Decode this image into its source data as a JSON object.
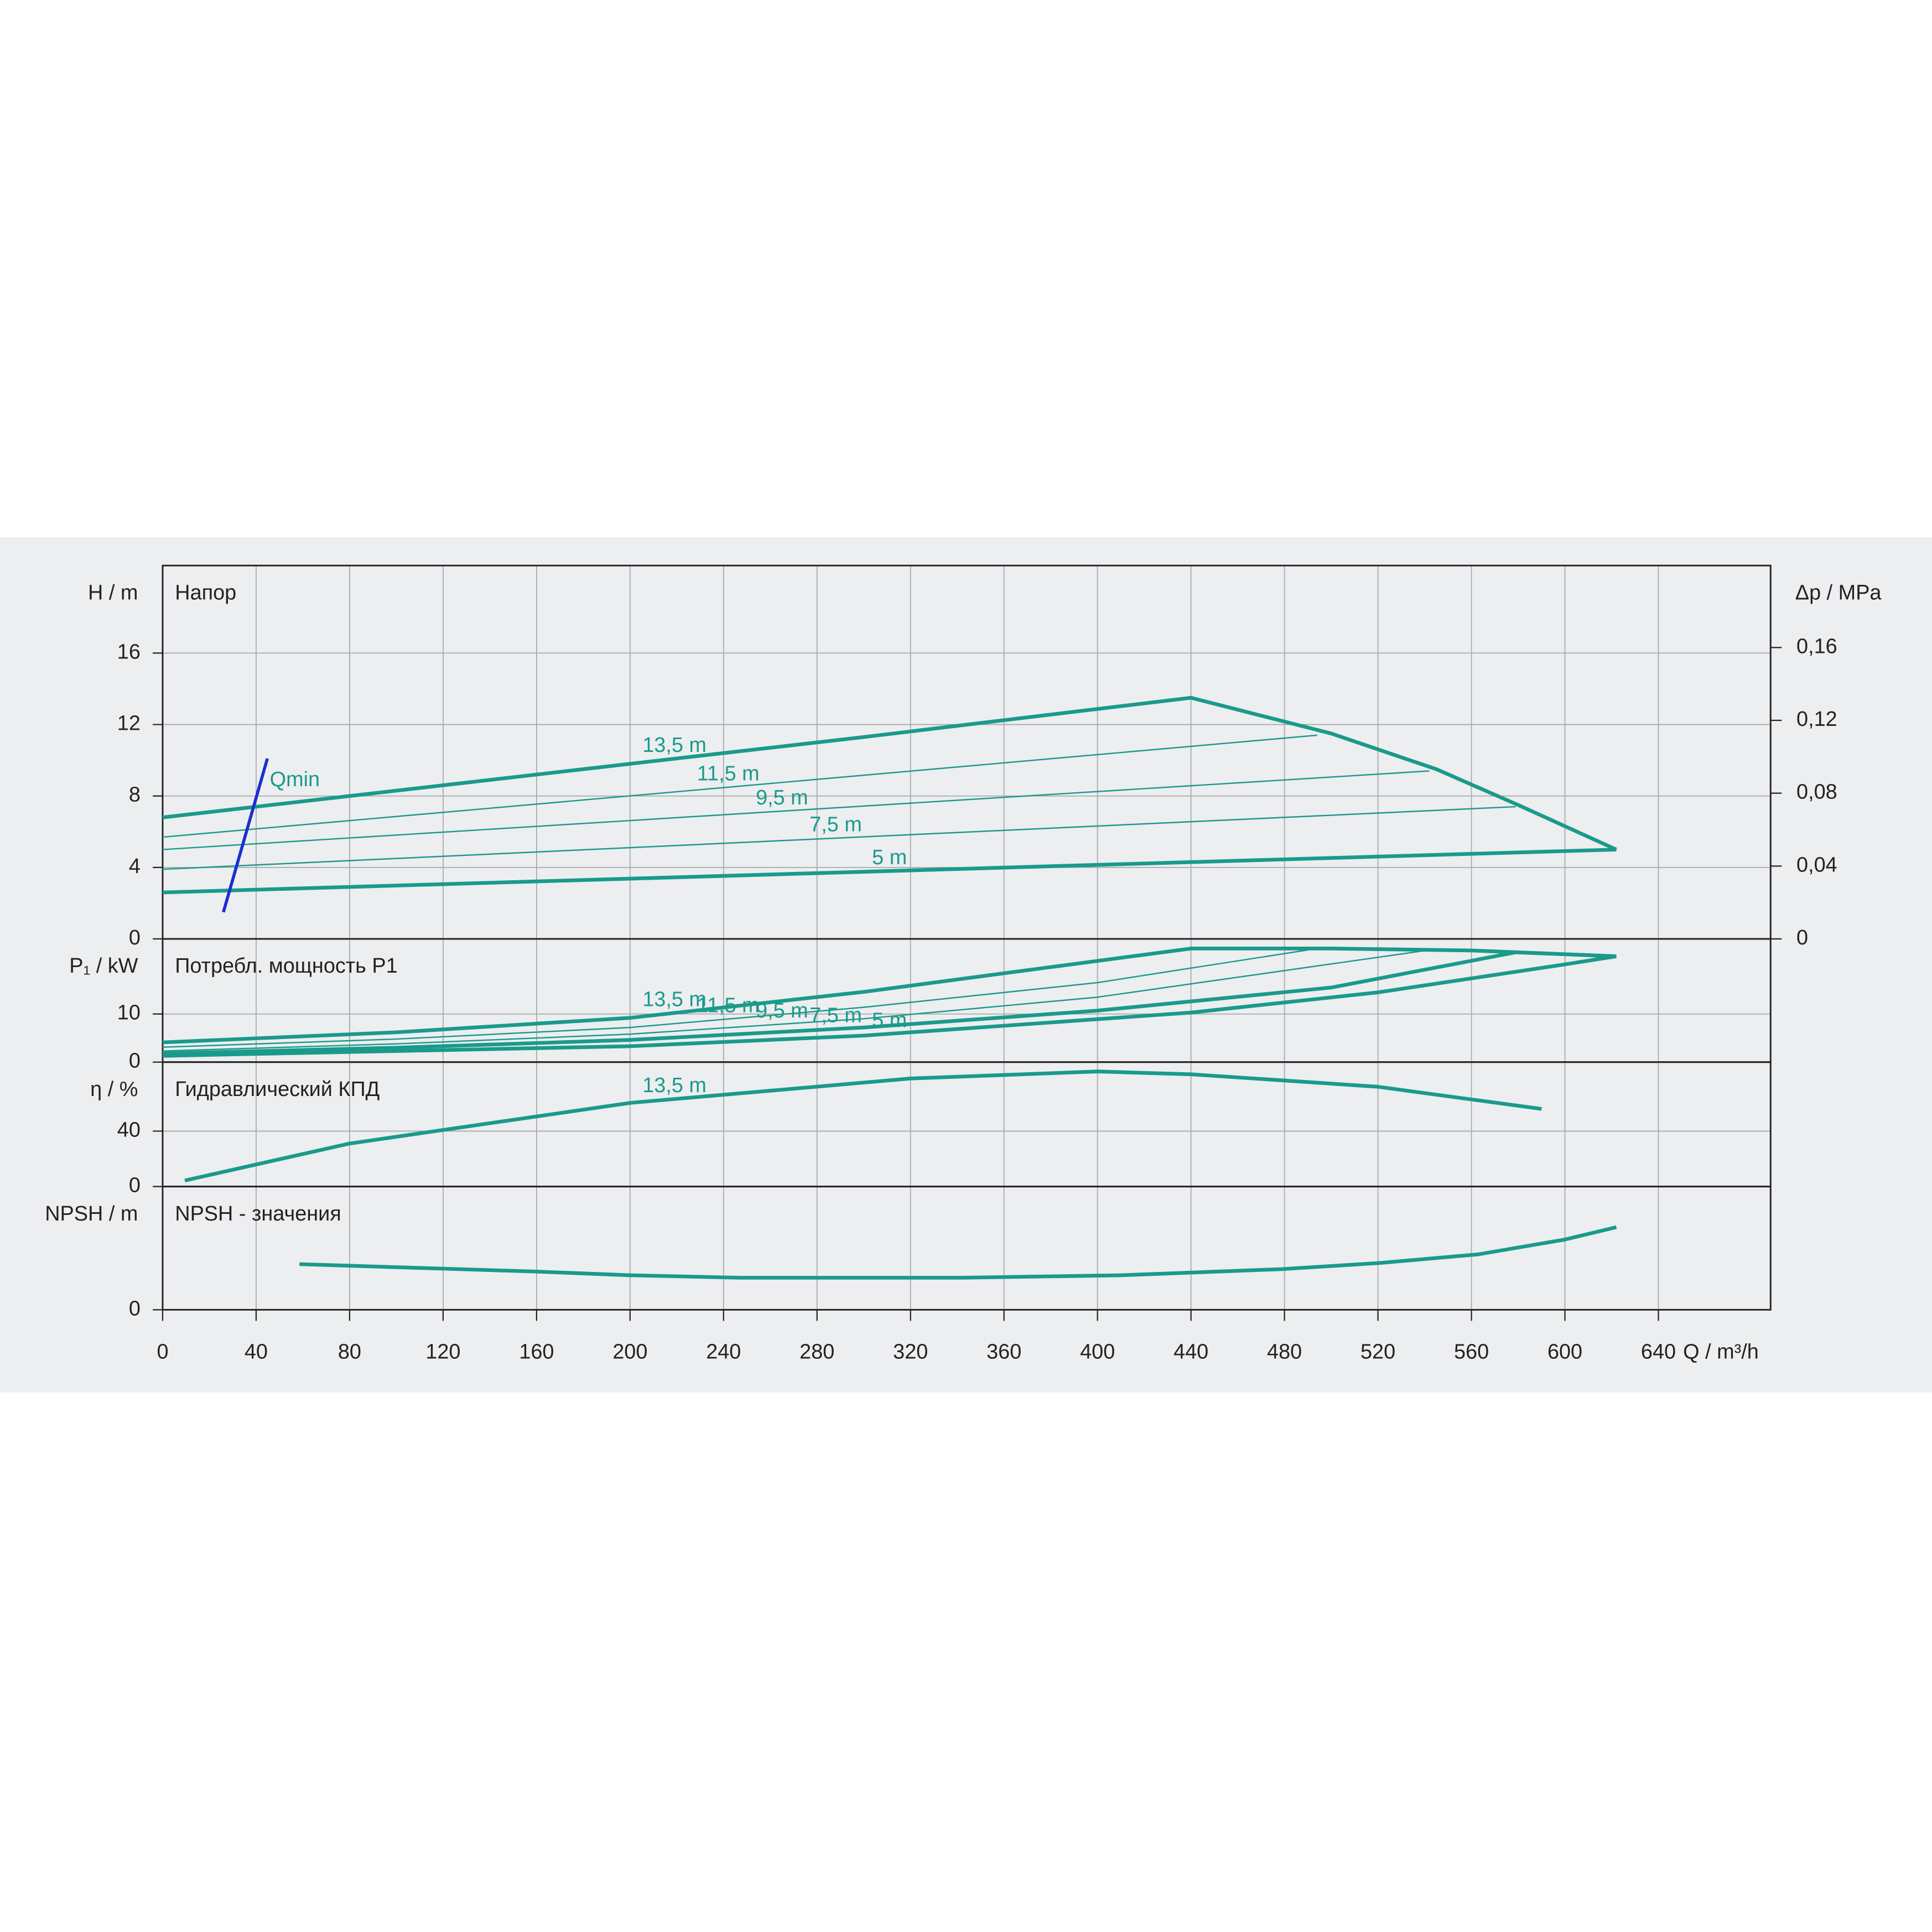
{
  "chart_data": [
    {
      "type": "line",
      "title": "Напор",
      "ylabel": "H / m",
      "ylim": [
        0,
        20.9
      ],
      "yticks": [
        0,
        4,
        8,
        12,
        16
      ],
      "y2label": "Δp / MPa",
      "y2lim": [
        0,
        0.205
      ],
      "y2ticks": [
        0,
        {
          "value": 0.04,
          "label": "0,04"
        },
        {
          "value": 0.08,
          "label": "0,08"
        },
        {
          "value": 0.12,
          "label": "0,12"
        },
        {
          "value": 0.16,
          "label": "0,16"
        }
      ],
      "series": [
        {
          "name": "13,5 m",
          "color": "#1a9a8a",
          "x": [
            0,
            100,
            200,
            300,
            440,
            500,
            545,
            580,
            622
          ],
          "values": [
            6.8,
            8.3,
            9.8,
            11.3,
            13.5,
            11.5,
            9.5,
            7.5,
            5.0
          ]
        },
        {
          "name": "11,5 m",
          "color": "#1a9a8a",
          "x": [
            0,
            494
          ],
          "values": [
            5.7,
            11.4
          ]
        },
        {
          "name": "9,5 m",
          "color": "#1a9a8a",
          "x": [
            0,
            542
          ],
          "values": [
            5.0,
            9.4
          ]
        },
        {
          "name": "7,5 m",
          "color": "#1a9a8a",
          "x": [
            0,
            579
          ],
          "values": [
            3.9,
            7.4
          ]
        },
        {
          "name": "5 m",
          "color": "#1a9a8a",
          "x": [
            0,
            622
          ],
          "values": [
            2.6,
            5.0
          ]
        },
        {
          "name": "Qmin",
          "color": "#1a2fd0",
          "x": [
            26,
            44.8
          ],
          "values": [
            1.5,
            10.1
          ]
        }
      ]
    },
    {
      "type": "line",
      "title": "Потребл. мощность P1",
      "ylabel": "P₁ / kW",
      "ylim": [
        0,
        25.6
      ],
      "yticks": [
        0,
        10
      ],
      "series": [
        {
          "name": "13,5 m",
          "color": "#1a9a8a",
          "x": [
            0,
            100,
            200,
            300,
            440,
            500,
            560,
            622
          ],
          "values": [
            4.1,
            6.2,
            9.2,
            14.6,
            23.6,
            23.6,
            23.2,
            22
          ]
        },
        {
          "name": "11,5 m",
          "color": "#1a9a8a",
          "x": [
            0,
            100,
            200,
            300,
            400,
            494,
            560,
            622
          ],
          "values": [
            3.1,
            4.8,
            7.2,
            11.4,
            16.5,
            23.6,
            23.2,
            22
          ]
        },
        {
          "name": "9,5 m",
          "color": "#1a9a8a",
          "x": [
            0,
            100,
            200,
            300,
            400,
            542,
            622
          ],
          "values": [
            2.3,
            3.8,
            5.8,
            9,
            13.5,
            23.3,
            22
          ]
        },
        {
          "name": "7,5 m",
          "color": "#1a9a8a",
          "x": [
            0,
            100,
            200,
            300,
            400,
            500,
            579,
            622
          ],
          "values": [
            1.8,
            3,
            4.6,
            7.2,
            10.7,
            15.5,
            22.8,
            22
          ]
        },
        {
          "name": "5 m",
          "color": "#1a9a8a",
          "x": [
            0,
            100,
            200,
            300,
            440,
            520,
            600,
            622
          ],
          "values": [
            1.3,
            2.3,
            3.3,
            5.5,
            10.3,
            14.5,
            20.3,
            22
          ]
        }
      ]
    },
    {
      "type": "line",
      "title": "Гидравлический КПД",
      "ylabel": "η / %",
      "ylim": [
        0,
        89.8
      ],
      "yticks": [
        0,
        40
      ],
      "series": [
        {
          "name": "13,5 m",
          "color": "#1a9a8a",
          "x": [
            9.5,
            80,
            200,
            320,
            400,
            440,
            520,
            590
          ],
          "values": [
            4.4,
            31,
            60.4,
            78,
            83,
            81,
            72,
            56
          ]
        }
      ]
    },
    {
      "type": "line",
      "title": "NPSH - значения",
      "ylabel": "NPSH / m",
      "ylim": [
        0,
        10
      ],
      "yticks": [
        0
      ],
      "xlabel": "Q / m³/h",
      "xlim": [
        0,
        688
      ],
      "xticks": [
        0,
        40,
        80,
        120,
        160,
        200,
        240,
        280,
        320,
        360,
        400,
        440,
        480,
        520,
        560,
        600,
        640
      ],
      "series": [
        {
          "color": "#1a9a8a",
          "x": [
            58.5,
            160,
            200,
            247,
            342,
            410,
            479,
            521,
            563,
            600,
            622
          ],
          "values": [
            3.7,
            3.1,
            2.8,
            2.6,
            2.6,
            2.8,
            3.3,
            3.8,
            4.5,
            5.7,
            6.7
          ]
        }
      ]
    }
  ]
}
